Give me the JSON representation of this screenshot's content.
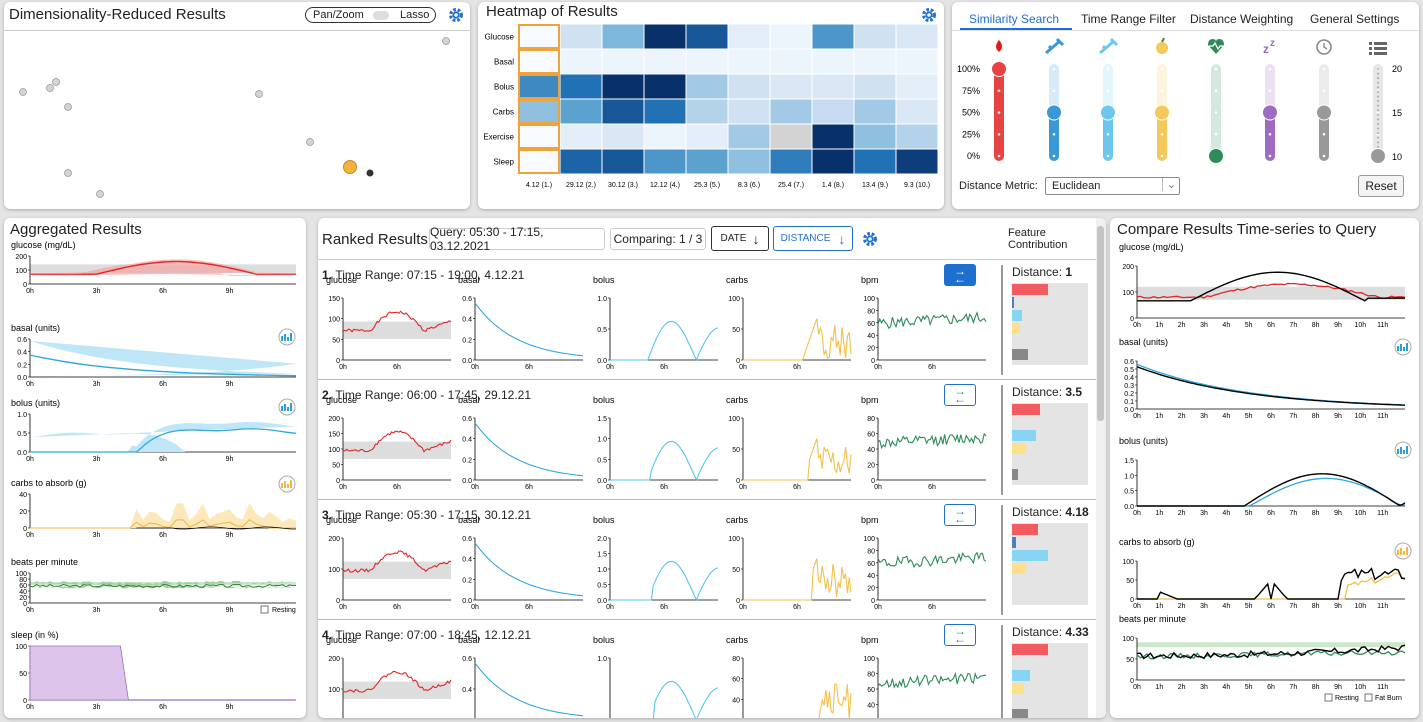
{
  "dr": {
    "title": "Dimensionality-Reduced Results",
    "toggle_left": "Pan/Zoom",
    "toggle_right": "Lasso"
  },
  "heat": {
    "title": "Heatmap of Results",
    "rows": [
      "Glucose",
      "Basal",
      "Bolus",
      "Carbs",
      "Exercise",
      "Sleep"
    ],
    "cols": [
      "4.12 (1.)",
      "29.12 (2.)",
      "30.12 (3.)",
      "12.12 (4.)",
      "25.3 (5.)",
      "8.3 (6.)",
      "25.4 (7.)",
      "1.4 (8.)",
      "13.4 (9.)",
      "9.3 (10.)"
    ],
    "values": [
      [
        0.0,
        0.2,
        0.45,
        1.0,
        0.85,
        0.1,
        0.05,
        0.6,
        0.2,
        0.15
      ],
      [
        0.0,
        0.05,
        0.05,
        0.05,
        0.05,
        0.05,
        0.05,
        0.05,
        0.05,
        0.05
      ],
      [
        0.65,
        0.75,
        1.0,
        1.0,
        0.35,
        0.2,
        0.15,
        0.15,
        0.2,
        0.1
      ],
      [
        0.4,
        0.55,
        0.85,
        0.75,
        0.3,
        0.2,
        0.35,
        0.25,
        0.35,
        0.15
      ],
      [
        0.0,
        0.1,
        0.15,
        0.05,
        0.1,
        0.35,
        -1,
        1.0,
        0.4,
        0.3
      ],
      [
        0.0,
        0.8,
        0.85,
        0.6,
        0.55,
        0.4,
        0.7,
        1.0,
        0.75,
        0.95
      ]
    ]
  },
  "sim": {
    "tabs": [
      "Similarity Search",
      "Time Range Filter",
      "Distance Weighting",
      "General Settings"
    ],
    "pct": [
      "100%",
      "75%",
      "50%",
      "25%",
      "0%"
    ],
    "right_ticks": [
      "20",
      "15",
      "10"
    ],
    "metric_label": "Distance Metric:",
    "metric_value": "Euclidean",
    "reset": "Reset",
    "sliders": [
      {
        "icon": "blood-drop-icon",
        "level": 1.0,
        "color": "#e84343"
      },
      {
        "icon": "syringe-icon",
        "level": 0.5,
        "color": "#3a98d6"
      },
      {
        "icon": "syringe-light-icon",
        "level": 0.5,
        "color": "#6cc7ee"
      },
      {
        "icon": "apple-icon",
        "level": 0.5,
        "color": "#f5c85c"
      },
      {
        "icon": "heartbeat-icon",
        "level": 0.0,
        "color": "#2e8b57"
      },
      {
        "icon": "sleep-icon",
        "level": 0.5,
        "color": "#9d6bc1"
      },
      {
        "icon": "clock-icon",
        "level": 0.5,
        "color": "#999999"
      },
      {
        "icon": "list-icon",
        "level": 0.0,
        "color": "#999999"
      }
    ]
  },
  "agg": {
    "title": "Aggregated Results",
    "xticks": [
      "0h",
      "3h",
      "6h",
      "9h"
    ],
    "charts": [
      {
        "label": "glucose (mg/dL)",
        "yticks": [
          "200",
          "100",
          "0"
        ]
      },
      {
        "label": "basal (units)",
        "yticks": [
          "0.6",
          "0.4",
          "0.2",
          "0.0"
        ]
      },
      {
        "label": "bolus (units)",
        "yticks": [
          "1.0",
          "0.5",
          "0.0"
        ]
      },
      {
        "label": "carbs to absorb (g)",
        "yticks": [
          "40",
          "20",
          "0"
        ]
      },
      {
        "label": "beats per minute",
        "yticks": [
          "100",
          "80",
          "60",
          "40",
          "20",
          "0"
        ],
        "legend": "Resting"
      },
      {
        "label": "sleep (in %)",
        "yticks": [
          "100",
          "50",
          "0"
        ]
      }
    ]
  },
  "ranked": {
    "title": "Ranked Results",
    "query": "Query: 05:30 - 17:15, 03.12.2021",
    "comparing": "Comparing: 1 / 3",
    "sort_date": "DATE",
    "sort_dist": "DISTANCE",
    "feature_header": "Feature Contribution",
    "xt": [
      "0h",
      "6h"
    ],
    "items": [
      {
        "idx": "1.",
        "range": "Time Range: 07:15 - 19:00, 4.12.21",
        "dist_label": "Distance:",
        "dist": "1",
        "charts": [
          {
            "n": "glucose",
            "y": [
              "150",
              "100",
              "50",
              "0"
            ]
          },
          {
            "n": "basal",
            "y": [
              "0.6",
              "0.4",
              "0.2",
              "0.0"
            ]
          },
          {
            "n": "bolus",
            "y": [
              "1.0",
              "0.5",
              "0.0"
            ]
          },
          {
            "n": "carbs",
            "y": [
              "100",
              "50",
              "0"
            ]
          },
          {
            "n": "bpm",
            "y": [
              "100",
              "80",
              "60",
              "40",
              "20",
              "0"
            ]
          }
        ],
        "contrib": [
          0.9,
          0.05,
          0.25,
          0.2,
          0,
          0.4
        ]
      },
      {
        "idx": "2.",
        "range": "Time Range: 06:00 - 17:45, 29.12.21",
        "dist_label": "Distance:",
        "dist": "3.5",
        "charts": [
          {
            "n": "glucose",
            "y": [
              "200",
              "150",
              "100",
              "50",
              "0"
            ]
          },
          {
            "n": "basal",
            "y": [
              "0.6",
              "0.4",
              "0.2",
              "0.0"
            ]
          },
          {
            "n": "bolus",
            "y": [
              "1.5",
              "1.0",
              "0.5",
              "0.0"
            ]
          },
          {
            "n": "carbs",
            "y": [
              "100",
              "50",
              "0"
            ]
          },
          {
            "n": "bpm",
            "y": [
              "80",
              "60",
              "40",
              "20",
              "0"
            ]
          }
        ],
        "contrib": [
          0.7,
          0,
          0.6,
          0.35,
          0,
          0.15
        ]
      },
      {
        "idx": "3.",
        "range": "Time Range: 05:30 - 17:15, 30.12.21",
        "dist_label": "Distance:",
        "dist": "4.18",
        "charts": [
          {
            "n": "glucose",
            "y": [
              "200",
              "100",
              "0"
            ]
          },
          {
            "n": "basal",
            "y": [
              "0.6",
              "0.4",
              "0.2",
              "0.0"
            ]
          },
          {
            "n": "bolus",
            "y": [
              "2.0",
              "1.5",
              "1.0",
              "0.5",
              "0.0"
            ]
          },
          {
            "n": "carbs",
            "y": [
              "100",
              "50",
              "0"
            ]
          },
          {
            "n": "bpm",
            "y": [
              "100",
              "80",
              "60",
              "40",
              "20",
              "0"
            ]
          }
        ],
        "contrib": [
          0.65,
          0.1,
          0.9,
          0.35,
          0,
          0
        ]
      },
      {
        "idx": "4.",
        "range": "Time Range: 07:00 - 18:45, 12.12.21",
        "dist_label": "Distance:",
        "dist": "4.33",
        "charts": [
          {
            "n": "glucose",
            "y": [
              "200",
              "100",
              "0"
            ]
          },
          {
            "n": "basal",
            "y": [
              "0.6",
              "0.4",
              "0.2"
            ]
          },
          {
            "n": "bolus",
            "y": [
              "1.0",
              "0.5"
            ]
          },
          {
            "n": "carbs",
            "y": [
              "80",
              "60",
              "40",
              "20"
            ]
          },
          {
            "n": "bpm",
            "y": [
              "100",
              "80",
              "60",
              "40",
              "20"
            ]
          }
        ],
        "contrib": [
          0.9,
          0,
          0.45,
          0.3,
          0,
          0.4
        ]
      }
    ]
  },
  "compare": {
    "title": "Compare Results Time-series to Query",
    "xticks": [
      "0h",
      "1h",
      "2h",
      "3h",
      "4h",
      "5h",
      "6h",
      "7h",
      "8h",
      "9h",
      "10h",
      "11h"
    ],
    "charts": [
      {
        "label": "glucose (mg/dL)",
        "yticks": [
          "200",
          "100",
          "0"
        ]
      },
      {
        "label": "basal (units)",
        "yticks": [
          "0.6",
          "0.5",
          "0.4",
          "0.3",
          "0.2",
          "0.1",
          "0.0"
        ]
      },
      {
        "label": "bolus (units)",
        "yticks": [
          "1.5",
          "1.0",
          "0.5",
          "0.0"
        ]
      },
      {
        "label": "carbs to absorb (g)",
        "yticks": [
          "100",
          "50",
          "0"
        ]
      },
      {
        "label": "beats per minute",
        "yticks": [
          "100",
          "50",
          "0"
        ],
        "legend1": "Resting",
        "legend2": "Fat Burn"
      }
    ]
  }
}
